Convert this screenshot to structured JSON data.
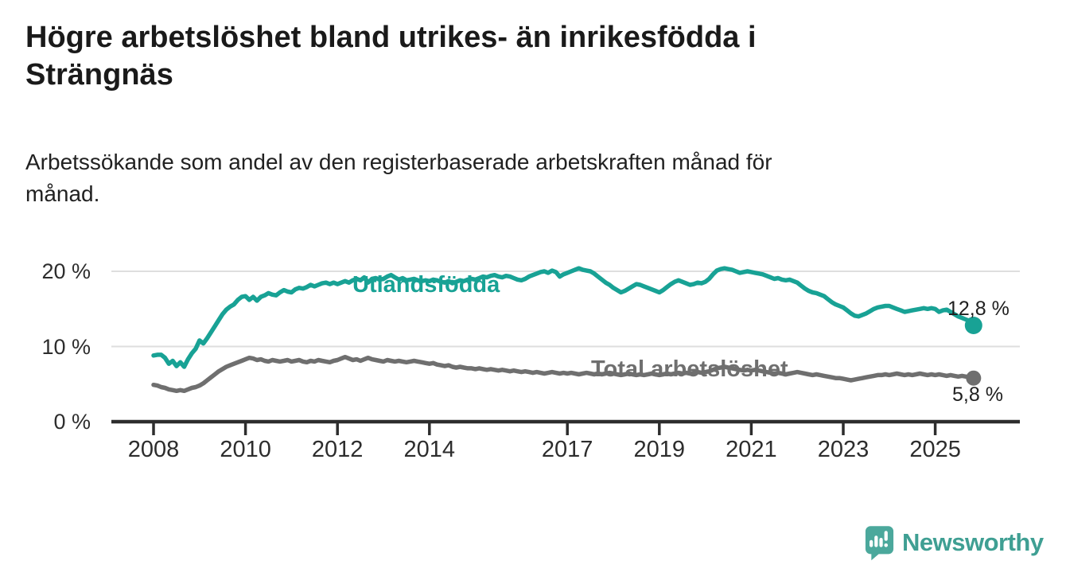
{
  "header": {
    "title": "Högre arbetslöshet bland utrikes- än inrikesfödda i\nSträngnäs",
    "subtitle": "Arbetssökande som andel av den registerbaserade arbetskraften månad för\nmånad."
  },
  "chart_data": {
    "type": "line",
    "title": "Högre arbetslöshet bland utrikes- än inrikesfödda i Strängnäs",
    "subtitle": "Arbetssökande som andel av den registerbaserade arbetskraften månad för månad.",
    "x_frequency": "monthly",
    "x_start_year": 2008,
    "x_start_month": 1,
    "x_ticks": [
      {
        "year": 2008,
        "label": "2008"
      },
      {
        "year": 2010,
        "label": "2010"
      },
      {
        "year": 2012,
        "label": "2012"
      },
      {
        "year": 2014,
        "label": "2014"
      },
      {
        "year": 2017,
        "label": "2017"
      },
      {
        "year": 2019,
        "label": "2019"
      },
      {
        "year": 2021,
        "label": "2021"
      },
      {
        "year": 2023,
        "label": "2023"
      },
      {
        "year": 2025,
        "label": "2025"
      }
    ],
    "y_ticks": [
      {
        "value": 0,
        "label": "0 %"
      },
      {
        "value": 10,
        "label": "10 %"
      },
      {
        "value": 20,
        "label": "20 %"
      }
    ],
    "ylim": [
      0,
      22
    ],
    "grid": "horizontal",
    "colors": {
      "grid": "#dedede",
      "axis": "#2d2d2d"
    },
    "series": [
      {
        "name": "Utlandsfödda",
        "color": "#18a295",
        "end_label": "12,8 %",
        "end_value": 12.8,
        "values": [
          8.8,
          8.9,
          8.9,
          8.5,
          7.7,
          8.1,
          7.4,
          7.9,
          7.3,
          8.3,
          9.1,
          9.7,
          10.8,
          10.4,
          11.1,
          11.9,
          12.7,
          13.5,
          14.3,
          14.9,
          15.3,
          15.6,
          16.2,
          16.6,
          16.7,
          16.2,
          16.6,
          16.1,
          16.6,
          16.8,
          17.1,
          16.9,
          16.8,
          17.2,
          17.5,
          17.3,
          17.2,
          17.6,
          17.8,
          17.7,
          17.9,
          18.2,
          18.0,
          18.2,
          18.4,
          18.5,
          18.3,
          18.5,
          18.3,
          18.5,
          18.7,
          18.5,
          18.8,
          19.0,
          18.8,
          19.2,
          18.5,
          19.0,
          19.1,
          18.9,
          19.0,
          19.3,
          19.5,
          19.2,
          18.9,
          19.1,
          18.8,
          18.9,
          19.0,
          18.8,
          18.7,
          18.8,
          18.7,
          18.9,
          18.8,
          18.6,
          18.5,
          18.7,
          18.4,
          18.6,
          18.8,
          18.7,
          18.9,
          19.0,
          18.9,
          19.1,
          19.3,
          19.2,
          19.4,
          19.5,
          19.3,
          19.2,
          19.4,
          19.3,
          19.1,
          18.9,
          18.8,
          19.0,
          19.3,
          19.5,
          19.7,
          19.9,
          20.0,
          19.8,
          20.1,
          19.9,
          19.3,
          19.6,
          19.8,
          20.0,
          20.2,
          20.4,
          20.2,
          20.1,
          20.0,
          19.7,
          19.3,
          18.9,
          18.5,
          18.2,
          17.8,
          17.5,
          17.2,
          17.4,
          17.7,
          18.0,
          18.3,
          18.2,
          18.0,
          17.8,
          17.6,
          17.4,
          17.2,
          17.5,
          17.9,
          18.3,
          18.6,
          18.8,
          18.6,
          18.4,
          18.2,
          18.3,
          18.5,
          18.4,
          18.6,
          19.0,
          19.6,
          20.1,
          20.3,
          20.4,
          20.3,
          20.2,
          20.0,
          19.8,
          19.9,
          20.0,
          19.9,
          19.8,
          19.7,
          19.6,
          19.4,
          19.2,
          19.0,
          19.1,
          18.9,
          18.8,
          18.9,
          18.7,
          18.5,
          18.1,
          17.7,
          17.4,
          17.2,
          17.1,
          16.9,
          16.7,
          16.3,
          15.9,
          15.6,
          15.4,
          15.2,
          14.8,
          14.4,
          14.1,
          14.0,
          14.2,
          14.4,
          14.7,
          15.0,
          15.2,
          15.3,
          15.4,
          15.4,
          15.2,
          15.0,
          14.8,
          14.6,
          14.7,
          14.8,
          14.9,
          15.0,
          15.1,
          15.0,
          15.1,
          15.0,
          14.6,
          14.8,
          14.9,
          14.6,
          14.3,
          14.0,
          13.8,
          13.6,
          13.4,
          12.8
        ]
      },
      {
        "name": "Total arbetslöshet",
        "color": "#6f6f6f",
        "end_label": "5,8 %",
        "end_value": 5.8,
        "values": [
          4.9,
          4.8,
          4.6,
          4.5,
          4.3,
          4.2,
          4.1,
          4.2,
          4.1,
          4.3,
          4.5,
          4.6,
          4.8,
          5.1,
          5.5,
          5.9,
          6.3,
          6.7,
          7.0,
          7.3,
          7.5,
          7.7,
          7.9,
          8.1,
          8.3,
          8.5,
          8.4,
          8.2,
          8.3,
          8.1,
          8.0,
          8.2,
          8.1,
          8.0,
          8.1,
          8.2,
          8.0,
          8.1,
          8.2,
          8.0,
          7.9,
          8.1,
          8.0,
          8.2,
          8.1,
          8.0,
          7.9,
          8.1,
          8.2,
          8.4,
          8.6,
          8.4,
          8.2,
          8.3,
          8.1,
          8.3,
          8.5,
          8.3,
          8.2,
          8.1,
          8.0,
          8.2,
          8.1,
          8.0,
          8.1,
          8.0,
          7.9,
          8.0,
          8.1,
          8.0,
          7.9,
          7.8,
          7.7,
          7.8,
          7.6,
          7.5,
          7.4,
          7.5,
          7.3,
          7.2,
          7.3,
          7.2,
          7.1,
          7.1,
          7.0,
          7.1,
          7.0,
          6.9,
          7.0,
          6.9,
          6.8,
          6.9,
          6.8,
          6.7,
          6.8,
          6.7,
          6.6,
          6.7,
          6.6,
          6.5,
          6.6,
          6.5,
          6.4,
          6.5,
          6.6,
          6.5,
          6.4,
          6.5,
          6.4,
          6.5,
          6.4,
          6.3,
          6.4,
          6.5,
          6.4,
          6.3,
          6.4,
          6.3,
          6.4,
          6.5,
          6.4,
          6.3,
          6.2,
          6.3,
          6.4,
          6.3,
          6.2,
          6.3,
          6.2,
          6.3,
          6.4,
          6.3,
          6.2,
          6.3,
          6.4,
          6.3,
          6.4,
          6.5,
          6.4,
          6.5,
          6.4,
          6.5,
          6.6,
          6.5,
          6.6,
          6.7,
          6.9,
          7.1,
          7.2,
          7.3,
          7.2,
          7.1,
          7.0,
          6.9,
          6.8,
          6.9,
          6.8,
          6.9,
          6.8,
          6.7,
          6.6,
          6.5,
          6.4,
          6.5,
          6.4,
          6.3,
          6.4,
          6.5,
          6.6,
          6.5,
          6.4,
          6.3,
          6.2,
          6.3,
          6.2,
          6.1,
          6.0,
          5.9,
          5.8,
          5.8,
          5.7,
          5.6,
          5.5,
          5.6,
          5.7,
          5.8,
          5.9,
          6.0,
          6.1,
          6.2,
          6.2,
          6.3,
          6.2,
          6.3,
          6.4,
          6.3,
          6.2,
          6.3,
          6.2,
          6.3,
          6.4,
          6.3,
          6.2,
          6.3,
          6.2,
          6.3,
          6.2,
          6.1,
          6.2,
          6.1,
          6.0,
          6.1,
          6.0,
          5.9,
          5.8
        ]
      }
    ]
  },
  "branding": {
    "logo_text": "Newsworthy",
    "logo_icon": "bar-chart-speech-bubble-icon",
    "logo_icon_color": "#4ba89c",
    "logo_text_color": "#3f9f93"
  }
}
